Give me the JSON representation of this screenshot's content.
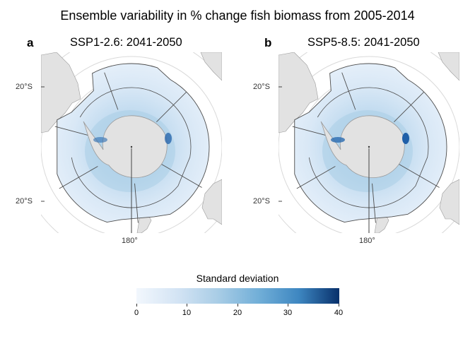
{
  "title": "Ensemble variability in % change fish biomass from 2005-2014",
  "panels": [
    {
      "letter": "a",
      "title": "SSP1-2.6: 2041-2050",
      "scenario": "SSP1-2.6",
      "period": "2041-2050",
      "hotspot_strength": 0.75
    },
    {
      "letter": "b",
      "title": "SSP5-8.5: 2041-2050",
      "scenario": "SSP5-8.5",
      "period": "2041-2050",
      "hotspot_strength": 1.0
    }
  ],
  "axes": {
    "lat_top": "20°S",
    "lat_bottom": "20°S",
    "lon_bottom": "180°"
  },
  "legend": {
    "title": "Standard deviation",
    "min": 0,
    "max": 40,
    "ticks": [
      "0",
      "10",
      "20",
      "30",
      "40"
    ],
    "colors": [
      "#f2f7fd",
      "#d4e4f4",
      "#a9cde6",
      "#72afd8",
      "#3e87c1",
      "#08306b"
    ]
  },
  "colors": {
    "land": "#e2e2e2",
    "land_outline": "#9a9a9a",
    "region_border": "#4d4d4d",
    "graticule": "#d9d9d9"
  }
}
